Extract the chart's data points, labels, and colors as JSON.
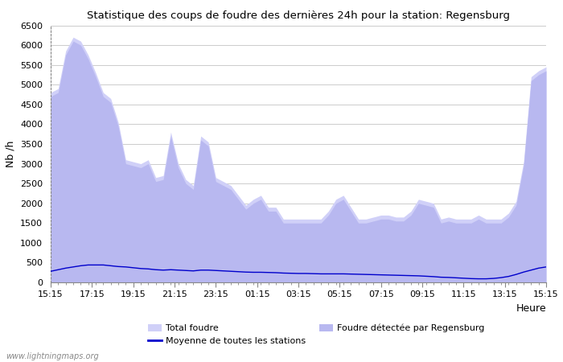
{
  "title": "Statistique des coups de foudre des dernières 24h pour la station: Regensburg",
  "xlabel": "Heure",
  "ylabel": "Nb /h",
  "xlabels": [
    "15:15",
    "17:15",
    "19:15",
    "21:15",
    "23:15",
    "01:15",
    "03:15",
    "05:15",
    "07:15",
    "09:15",
    "11:15",
    "13:15",
    "15:15"
  ],
  "ylim": [
    0,
    6500
  ],
  "yticks": [
    0,
    500,
    1000,
    1500,
    2000,
    2500,
    3000,
    3500,
    4000,
    4500,
    5000,
    5500,
    6000,
    6500
  ],
  "watermark": "www.lightningmaps.org",
  "bg_color": "#ffffff",
  "plot_bg_color": "#ffffff",
  "grid_color": "#cccccc",
  "fill_total_color": "#d0d0f8",
  "fill_regensburg_color": "#b8b8f0",
  "line_mean_color": "#0000cc",
  "total_foudre": [
    4800,
    4900,
    5850,
    6200,
    6100,
    5750,
    5300,
    4800,
    4650,
    4050,
    3100,
    3050,
    3000,
    3100,
    2650,
    2700,
    3800,
    3000,
    2600,
    2450,
    3700,
    3550,
    2650,
    2550,
    2450,
    2200,
    1950,
    2100,
    2200,
    1900,
    1900,
    1600,
    1600,
    1600,
    1600,
    1600,
    1600,
    1800,
    2100,
    2200,
    1900,
    1600,
    1600,
    1650,
    1700,
    1700,
    1650,
    1650,
    1800,
    2100,
    2050,
    2000,
    1600,
    1650,
    1600,
    1600,
    1600,
    1700,
    1600,
    1600,
    1600,
    1750,
    2050,
    3050,
    5200,
    5350,
    5450
  ],
  "foudre_regensburg": [
    4700,
    4800,
    5750,
    6100,
    6000,
    5650,
    5200,
    4700,
    4550,
    3950,
    3000,
    2950,
    2900,
    3000,
    2550,
    2600,
    3700,
    2900,
    2500,
    2350,
    3600,
    3450,
    2550,
    2450,
    2350,
    2100,
    1850,
    2000,
    2100,
    1800,
    1800,
    1500,
    1500,
    1500,
    1500,
    1500,
    1500,
    1700,
    2000,
    2100,
    1800,
    1500,
    1500,
    1550,
    1600,
    1600,
    1550,
    1550,
    1700,
    2000,
    1950,
    1900,
    1500,
    1550,
    1500,
    1500,
    1500,
    1600,
    1500,
    1500,
    1500,
    1650,
    1950,
    2950,
    5100,
    5250,
    5350
  ],
  "mean_stations": [
    280,
    320,
    360,
    390,
    420,
    440,
    440,
    440,
    420,
    400,
    390,
    370,
    350,
    340,
    320,
    310,
    320,
    310,
    300,
    290,
    310,
    310,
    300,
    290,
    280,
    270,
    260,
    255,
    255,
    250,
    245,
    235,
    230,
    225,
    225,
    220,
    215,
    215,
    215,
    215,
    210,
    205,
    200,
    195,
    190,
    185,
    180,
    175,
    170,
    165,
    155,
    145,
    130,
    125,
    115,
    105,
    95,
    90,
    90,
    100,
    120,
    150,
    200,
    260,
    310,
    360,
    390
  ],
  "n_points": 67
}
